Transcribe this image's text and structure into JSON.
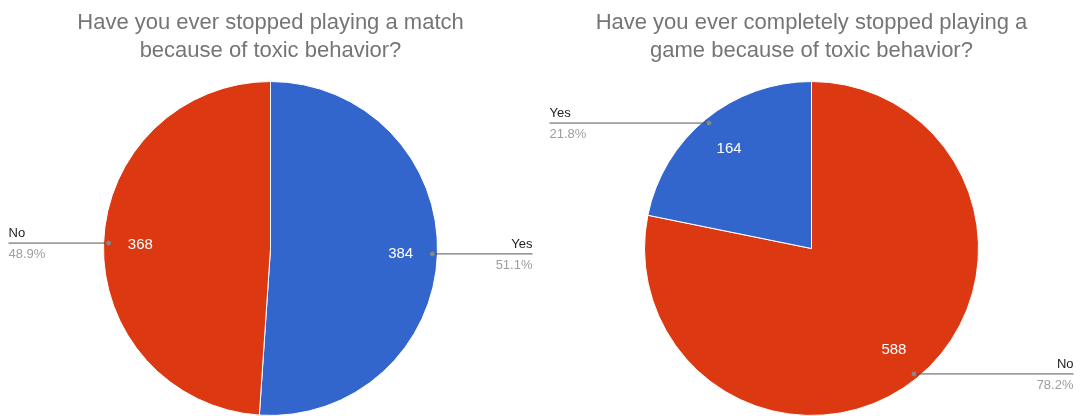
{
  "chart_data": [
    {
      "type": "pie",
      "title": "Have you ever stopped playing a match\nbecause of toxic behavior?",
      "categories": [
        "Yes",
        "No"
      ],
      "values": [
        384,
        368
      ],
      "colors": [
        "#3366cc",
        "#dc3912"
      ],
      "data_labels": true,
      "annotations": [
        "51.1%",
        "48.9%"
      ]
    },
    {
      "type": "pie",
      "title": "Have you ever completely stopped playing a\ngame because of toxic behavior?",
      "categories": [
        "No",
        "Yes"
      ],
      "values": [
        588,
        164
      ],
      "colors": [
        "#dc3912",
        "#3366cc"
      ],
      "data_labels": true,
      "annotations": [
        "78.2%",
        "21.8%"
      ]
    }
  ]
}
